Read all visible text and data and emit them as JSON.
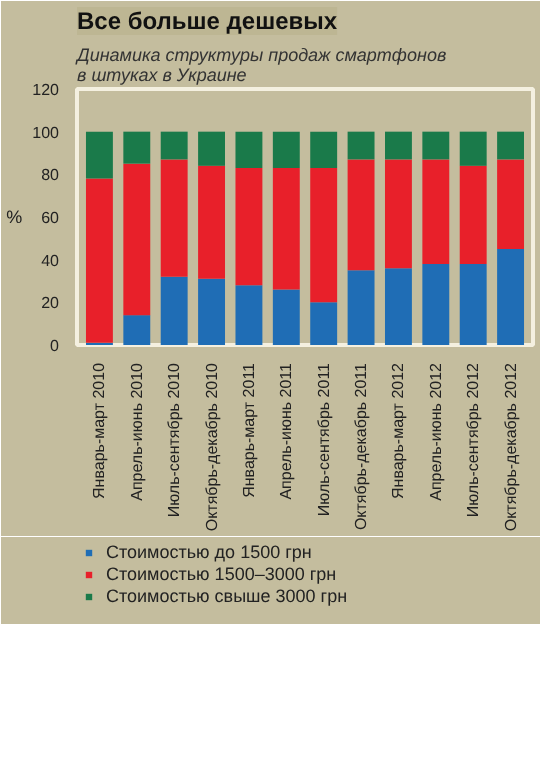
{
  "chart_data": {
    "type": "bar",
    "stacked": true,
    "title": "Все больше дешевых",
    "subtitle": "Динамика структуры продаж смартфонов\nв штуках в Украине",
    "ylabel": "%",
    "categories": [
      "Январь-март 2010",
      "Апрель-июнь 2010",
      "Июль-сентябрь 2010",
      "Октябрь-декабрь 2010",
      "Январь-март 2011",
      "Апрель-июнь 2011",
      "Июль-сентябрь 2011",
      "Октябрь-декабрь 2011",
      "Январь-март 2012",
      "Апрель-июнь 2012",
      "Июль-сентябрь 2012",
      "Октябрь-декабрь 2012"
    ],
    "series": [
      {
        "name": "Стоимостью до 1500 грн",
        "color": "#1f6db5",
        "values": [
          1,
          14,
          32,
          31,
          28,
          26,
          20,
          35,
          36,
          38,
          38,
          45
        ]
      },
      {
        "name": "Стоимостью 1500–3000 грн",
        "color": "#e8202a",
        "values": [
          77,
          71,
          55,
          53,
          55,
          57,
          63,
          52,
          51,
          49,
          46,
          42
        ]
      },
      {
        "name": "Стоимостью свыше 3000 грн",
        "color": "#1a7a4a",
        "values": [
          22,
          15,
          13,
          16,
          17,
          17,
          17,
          13,
          13,
          13,
          16,
          13
        ]
      }
    ],
    "ylim": [
      0,
      120
    ],
    "yticks": [
      0,
      20,
      40,
      60,
      80,
      100,
      120
    ],
    "grid": false,
    "legend": "bottom"
  }
}
